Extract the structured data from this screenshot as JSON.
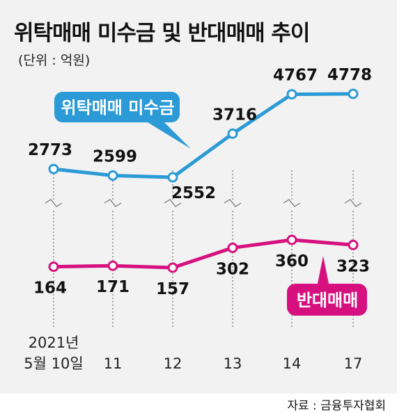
{
  "header": {
    "title": "위탁매매 미수금 및 반대매매 추이",
    "unit": "(단위 : 억원)"
  },
  "footer": {
    "source": "자료 : 금융투자협회"
  },
  "colors": {
    "background": "#f2f2f2",
    "series_1": "#2b9ad6",
    "series_2": "#d6117f",
    "gridline": "#7a7a7a"
  },
  "chart_data": {
    "type": "line",
    "title": "위탁매매 미수금 및 반대매매 추이",
    "ylabel": "(단위 : 억원)",
    "categories": [
      "2021년\n5월 10일",
      "11",
      "12",
      "13",
      "14",
      "17"
    ],
    "axis_break": true,
    "grid": "vertical",
    "series": [
      {
        "name": "위탁매매 미수금",
        "values": [
          2773,
          2599,
          2552,
          3716,
          4767,
          4778
        ],
        "ylim": [
          2552,
          4778
        ]
      },
      {
        "name": "반대매매",
        "values": [
          164,
          171,
          157,
          302,
          360,
          323
        ],
        "ylim": [
          157,
          360
        ]
      }
    ]
  }
}
